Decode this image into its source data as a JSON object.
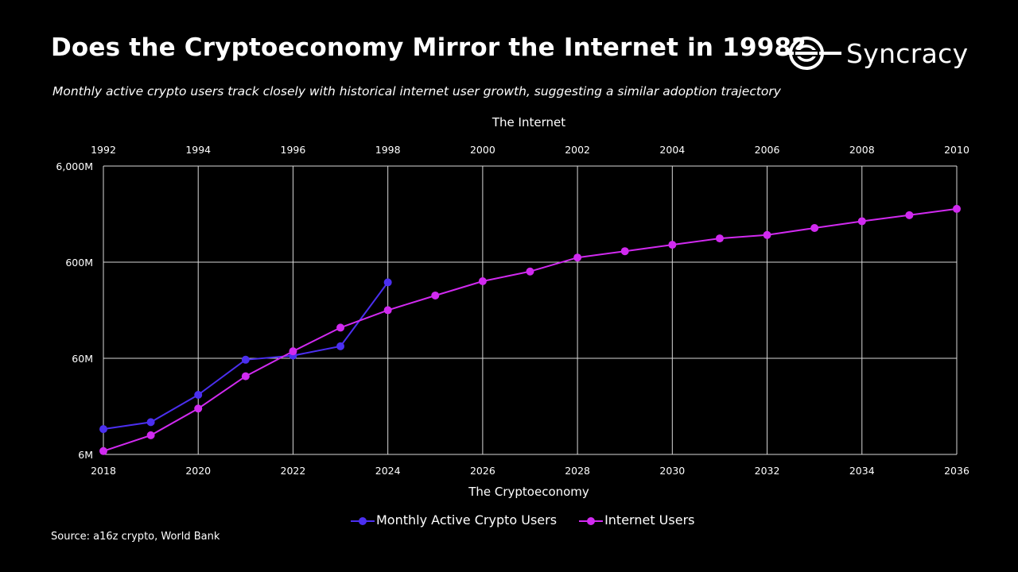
{
  "header": {
    "title": "Does the Cryptoeconomy Mirror the Internet in 1998?",
    "subtitle": "Monthly active crypto users track closely with historical internet user growth, suggesting a similar adoption trajectory",
    "logo_text": "Syncracy",
    "logo_icon": "syncracy-logo-icon"
  },
  "footer": {
    "source": "Source: a16z crypto, World Bank"
  },
  "chart_data": {
    "type": "line",
    "title": "Does the Cryptoeconomy Mirror the Internet in 1998?",
    "subtitle": "Monthly active crypto users track closely with historical internet user growth, suggesting a similar adoption trajectory",
    "xlabel": "The Cryptoeconomy",
    "x2label": "The Internet",
    "x": [
      2018,
      2019,
      2020,
      2021,
      2022,
      2023,
      2024,
      2025,
      2026,
      2027,
      2028,
      2029,
      2030,
      2031,
      2032,
      2033,
      2034,
      2035,
      2036
    ],
    "x_ticks": [
      "2018",
      "2020",
      "2022",
      "2024",
      "2026",
      "2028",
      "2030",
      "2032",
      "2034",
      "2036"
    ],
    "x2_ticks": [
      "1992",
      "1994",
      "1996",
      "1998",
      "2000",
      "2002",
      "2004",
      "2006",
      "2008",
      "2010"
    ],
    "xlim": [
      2018,
      2036
    ],
    "y_ticks": [
      "6M",
      "60M",
      "600M",
      "6,000M"
    ],
    "ylim": [
      6,
      6000
    ],
    "y_scale": "log",
    "y_unit": "M",
    "grid": true,
    "legend_position": "bottom",
    "series": [
      {
        "name": "Monthly Active Crypto Users",
        "color": "#4b2ff0",
        "x": [
          2018,
          2019,
          2020,
          2021,
          2022,
          2023,
          2024
        ],
        "values": [
          11,
          13,
          25,
          58,
          64,
          80,
          370
        ]
      },
      {
        "name": "Internet Users",
        "color": "#d12af0",
        "x": [
          2018,
          2019,
          2020,
          2021,
          2022,
          2023,
          2024,
          2025,
          2026,
          2027,
          2028,
          2029,
          2030,
          2031,
          2032,
          2033,
          2034,
          2035,
          2036
        ],
        "values": [
          6.5,
          9.5,
          18,
          39,
          71,
          125,
          190,
          270,
          380,
          480,
          670,
          780,
          910,
          1060,
          1150,
          1360,
          1600,
          1850,
          2150
        ]
      }
    ]
  }
}
